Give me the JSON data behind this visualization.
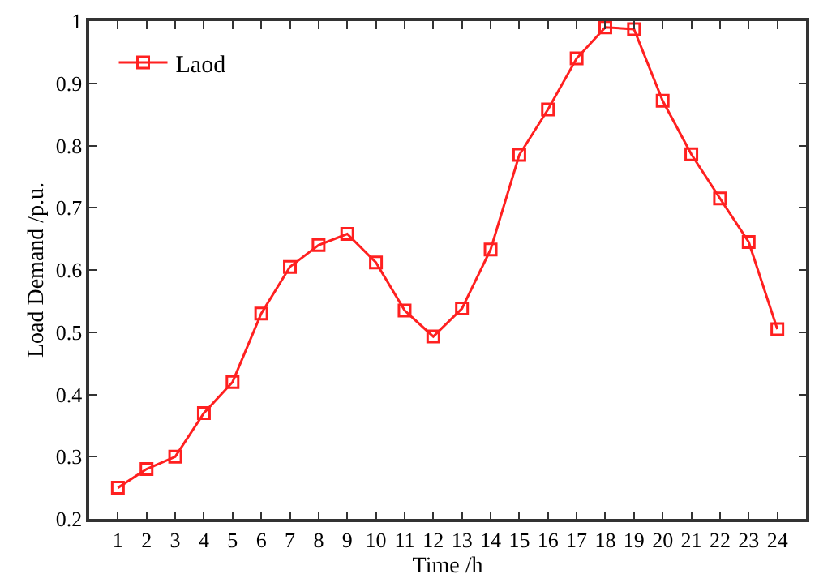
{
  "chart_data": {
    "type": "line",
    "xlabel": "Time /h",
    "ylabel": "Load Demand /p.u.",
    "x": [
      1,
      2,
      3,
      4,
      5,
      6,
      7,
      8,
      9,
      10,
      11,
      12,
      13,
      14,
      15,
      16,
      17,
      18,
      19,
      20,
      21,
      22,
      23,
      24
    ],
    "series": [
      {
        "name": "Laod",
        "color": "#ff2020",
        "values": [
          0.25,
          0.28,
          0.3,
          0.37,
          0.42,
          0.53,
          0.605,
          0.64,
          0.658,
          0.612,
          0.535,
          0.493,
          0.538,
          0.633,
          0.785,
          0.858,
          0.94,
          0.99,
          0.987,
          0.872,
          0.786,
          0.715,
          0.645,
          0.505
        ]
      }
    ],
    "xlim": [
      0,
      25
    ],
    "xticks": [
      1,
      2,
      3,
      4,
      5,
      6,
      7,
      8,
      9,
      10,
      11,
      12,
      13,
      14,
      15,
      16,
      17,
      18,
      19,
      20,
      21,
      22,
      23,
      24
    ],
    "ylim": [
      0.2,
      1
    ],
    "yticks": [
      0.2,
      0.3,
      0.4,
      0.5,
      0.6,
      0.7,
      0.8,
      0.9,
      1
    ],
    "grid": false,
    "legend": "top left",
    "marker": "square",
    "line_style": "solid"
  }
}
